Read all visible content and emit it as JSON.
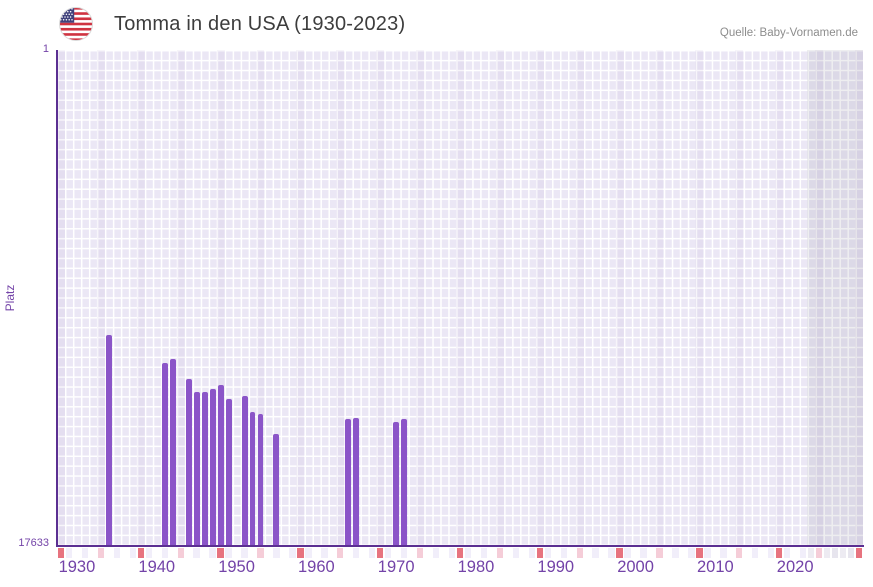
{
  "header": {
    "title": "Tomma in den USA (1930-2023)",
    "flag_icon": "us-flag-icon",
    "source": "Quelle: Baby-Vornamen.de"
  },
  "y_axis": {
    "label": "Platz",
    "top_tick": "1",
    "bottom_tick": "17633"
  },
  "chart_data": {
    "type": "bar",
    "title": "Tomma in den USA (1930-2023)",
    "xlabel": "",
    "ylabel": "Platz",
    "ylim": [
      1,
      17633
    ],
    "y_inverted": true,
    "x_range": [
      1928,
      2028
    ],
    "x_tick_years": [
      "1930",
      "1940",
      "1950",
      "1960",
      "1970",
      "1980",
      "1990",
      "2000",
      "2010",
      "2020"
    ],
    "grid": true,
    "legend": false,
    "bars": [
      {
        "year": 1934,
        "platz": 10150
      },
      {
        "year": 1941,
        "platz": 11140
      },
      {
        "year": 1942,
        "platz": 11010
      },
      {
        "year": 1944,
        "platz": 11730
      },
      {
        "year": 1945,
        "platz": 12170
      },
      {
        "year": 1946,
        "platz": 12170
      },
      {
        "year": 1947,
        "platz": 12090
      },
      {
        "year": 1948,
        "platz": 11920
      },
      {
        "year": 1949,
        "platz": 12420
      },
      {
        "year": 1951,
        "platz": 12310
      },
      {
        "year": 1952,
        "platz": 12880
      },
      {
        "year": 1953,
        "platz": 12950
      },
      {
        "year": 1955,
        "platz": 13690
      },
      {
        "year": 1964,
        "platz": 13140
      },
      {
        "year": 1965,
        "platz": 13120
      },
      {
        "year": 1970,
        "platz": 13240
      },
      {
        "year": 1971,
        "platz": 13150
      }
    ],
    "no_data_band": {
      "from": 2022,
      "to": 2028
    },
    "ruler_strip": {
      "red_cell_years_ending_in": 8,
      "pink_cell_years_ending_in": 3
    },
    "colors": {
      "bar": "#8b55c8",
      "axis_line": "#5b2f92",
      "grid_cell": "#ebe7f5",
      "tick_text": "#7343a8",
      "title_text": "#3d3d3d",
      "source_text": "#8d8d8d",
      "ruler_red": "#e7737f",
      "ruler_pink": "#f5cdd8"
    }
  }
}
